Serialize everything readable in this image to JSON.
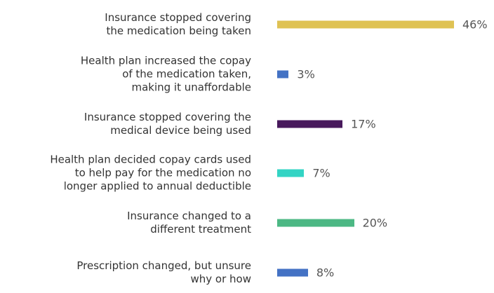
{
  "chart_data": {
    "type": "bar",
    "orientation": "horizontal",
    "categories": [
      "Insurance stopped covering\nthe medication being taken",
      "Health plan increased the copay\nof the medication taken,\nmaking it unaffordable",
      "Insurance stopped covering the\nmedical device being used",
      "Health plan decided copay cards used\nto help pay for the medication no\nlonger applied to annual deductible",
      "Insurance changed to a\ndifferent treatment",
      "Prescription changed, but unsure\nwhy or how"
    ],
    "values": [
      46,
      3,
      17,
      7,
      20,
      8
    ],
    "value_labels": [
      "46%",
      "3%",
      "17%",
      "7%",
      "20%",
      "8%"
    ],
    "colors": [
      "#dfc253",
      "#4472c4",
      "#48195c",
      "#33d4c4",
      "#4cb884",
      "#4472c4"
    ]
  }
}
